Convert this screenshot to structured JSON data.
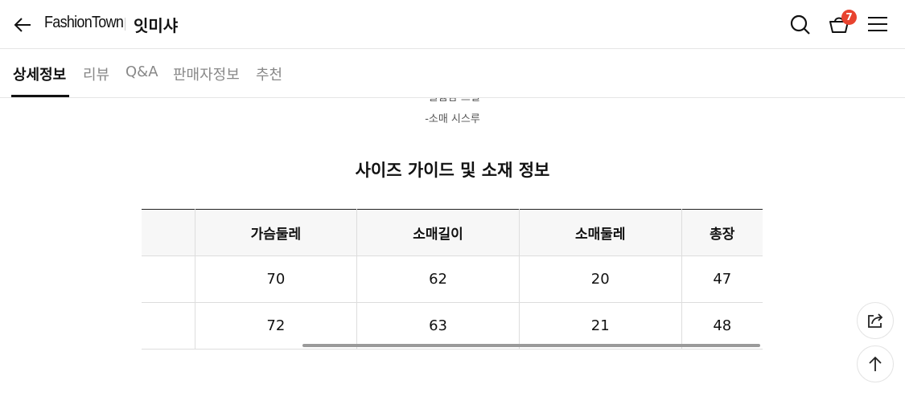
{
  "header": {
    "brand": "FashionTown",
    "shop": "잇미샤",
    "cart_count": "7"
  },
  "tabs": [
    {
      "label": "상세정보"
    },
    {
      "label": "리뷰"
    },
    {
      "label": "Q&A"
    },
    {
      "label": "판매자정보"
    },
    {
      "label": "추천"
    }
  ],
  "content": {
    "cut_note": "-볼륨감 프릴",
    "note": "-소매 시스루",
    "title": "사이즈 가이드 및 소재 정보"
  },
  "size_table": {
    "headers": [
      "",
      "가슴둘레",
      "소매길이",
      "소매둘레",
      "총장"
    ],
    "rows": [
      [
        "",
        "70",
        "62",
        "20",
        "47"
      ],
      [
        "",
        "72",
        "63",
        "21",
        "48"
      ]
    ]
  }
}
